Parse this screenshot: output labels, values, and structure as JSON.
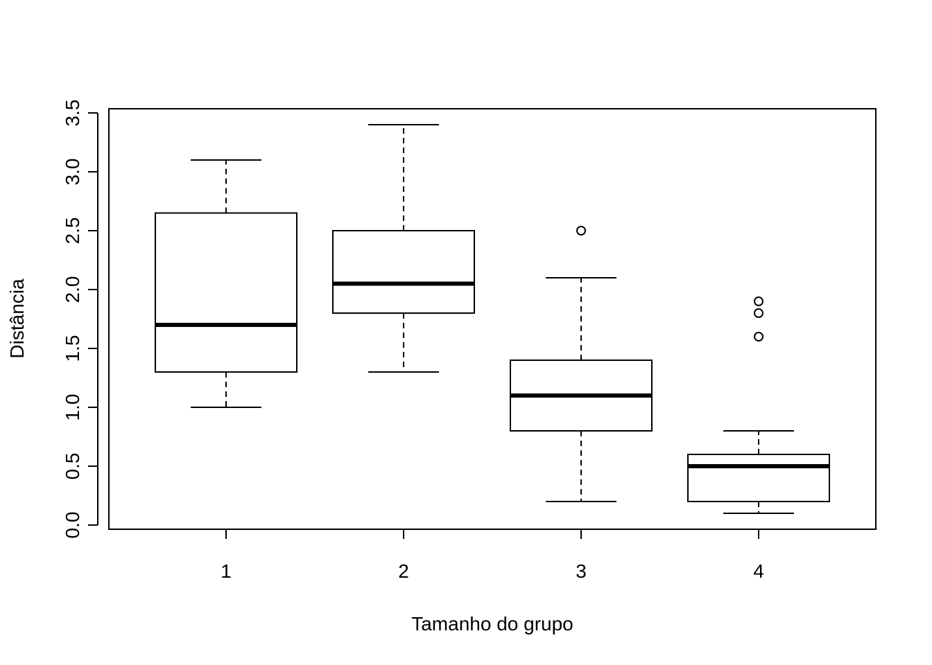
{
  "chart_data": {
    "type": "box",
    "title": "",
    "xlabel": "Tamanho do grupo",
    "ylabel": "Distância",
    "ylim": [
      0.0,
      3.5
    ],
    "yticks": [
      "0.0",
      "0.5",
      "1.0",
      "1.5",
      "2.0",
      "2.5",
      "3.0",
      "3.5"
    ],
    "categories": [
      "1",
      "2",
      "3",
      "4"
    ],
    "boxes": [
      {
        "category": "1",
        "whisker_low": 1.0,
        "q1": 1.3,
        "median": 1.7,
        "q3": 2.65,
        "whisker_high": 3.1,
        "outliers": []
      },
      {
        "category": "2",
        "whisker_low": 1.3,
        "q1": 1.8,
        "median": 2.05,
        "q3": 2.5,
        "whisker_high": 3.4,
        "outliers": []
      },
      {
        "category": "3",
        "whisker_low": 0.2,
        "q1": 0.8,
        "median": 1.1,
        "q3": 1.4,
        "whisker_high": 2.1,
        "outliers": [
          2.5
        ]
      },
      {
        "category": "4",
        "whisker_low": 0.1,
        "q1": 0.2,
        "median": 0.5,
        "q3": 0.6,
        "whisker_high": 0.8,
        "outliers": [
          1.6,
          1.8,
          1.9
        ]
      }
    ],
    "grid": false,
    "legend": "none"
  }
}
